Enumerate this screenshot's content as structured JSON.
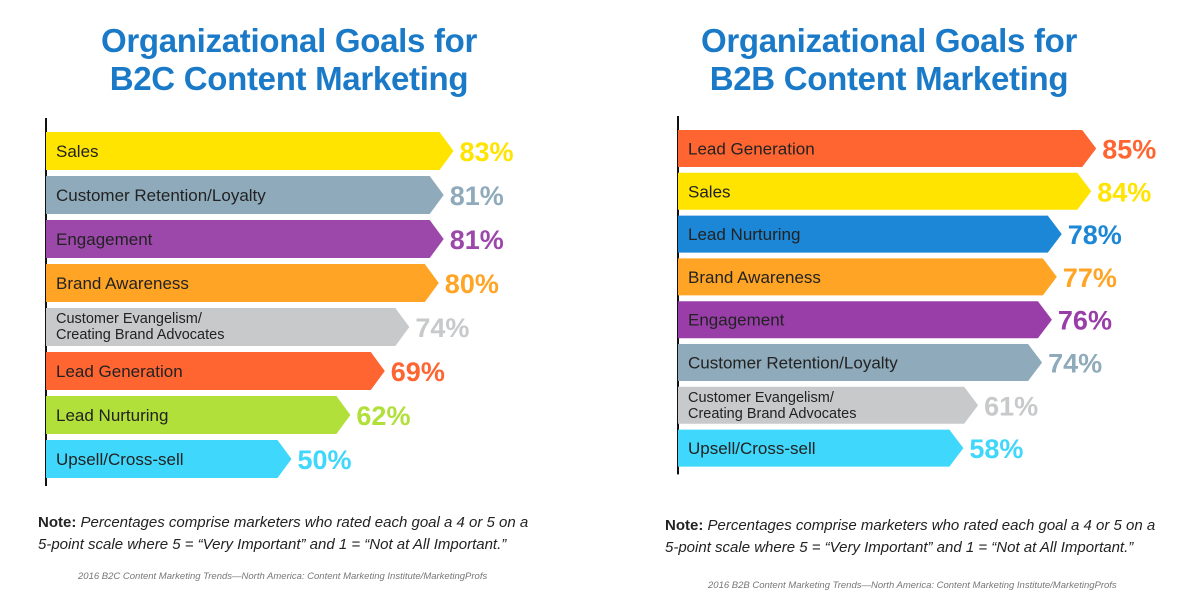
{
  "chart_data": [
    {
      "type": "bar",
      "title_line1": "Organizational Goals for",
      "title_line2": "B2C Content Marketing",
      "categories": [
        [
          "Sales"
        ],
        [
          "Customer Retention/Loyalty"
        ],
        [
          "Engagement"
        ],
        [
          "Brand Awareness"
        ],
        [
          "Customer Evangelism/",
          "Creating Brand Advocates"
        ],
        [
          "Lead Generation"
        ],
        [
          "Lead Nurturing"
        ],
        [
          "Upsell/Cross-sell"
        ]
      ],
      "values": [
        83,
        81,
        81,
        80,
        74,
        69,
        62,
        50
      ],
      "value_labels": [
        "83%",
        "81%",
        "81%",
        "80%",
        "74%",
        "69%",
        "62%",
        "50%"
      ],
      "colors": [
        "#ffe400",
        "#8fabbb",
        "#9c47aa",
        "#ffa424",
        "#c7c9cb",
        "#ff6531",
        "#b1e03a",
        "#3fd7fb"
      ],
      "orientation": "horizontal",
      "note_bold": "Note:",
      "note_line1": "Percentages comprise marketers who rated each goal a 4 or 5 on a",
      "note_line2": "5-point scale where 5 = “Very Important” and 1 = “Not at All Important.”",
      "source": "2016 B2C Content Marketing Trends—North America: Content Marketing Institute/MarketingProfs"
    },
    {
      "type": "bar",
      "title_line1": "Organizational Goals for",
      "title_line2": "B2B Content Marketing",
      "categories": [
        [
          "Lead Generation"
        ],
        [
          "Sales"
        ],
        [
          "Lead Nurturing"
        ],
        [
          "Brand Awareness"
        ],
        [
          "Engagement"
        ],
        [
          "Customer Retention/Loyalty"
        ],
        [
          "Customer Evangelism/",
          "Creating Brand Advocates"
        ],
        [
          "Upsell/Cross-sell"
        ]
      ],
      "values": [
        85,
        84,
        78,
        77,
        76,
        74,
        61,
        58
      ],
      "value_labels": [
        "85%",
        "84%",
        "78%",
        "77%",
        "76%",
        "74%",
        "61%",
        "58%"
      ],
      "colors": [
        "#ff6531",
        "#ffe400",
        "#1b87d6",
        "#ffa424",
        "#993ea8",
        "#8fabbb",
        "#c7c9cb",
        "#3fd7fb"
      ],
      "orientation": "horizontal",
      "note_bold": "Note:",
      "note_line1": "Percentages comprise marketers who rated each goal a 4 or 5 on a",
      "note_line2": "5-point scale where 5 = “Very Important” and 1 = “Not at All Important.”",
      "source": "2016 B2B Content Marketing Trends—North America: Content Marketing Institute/MarketingProfs"
    }
  ]
}
